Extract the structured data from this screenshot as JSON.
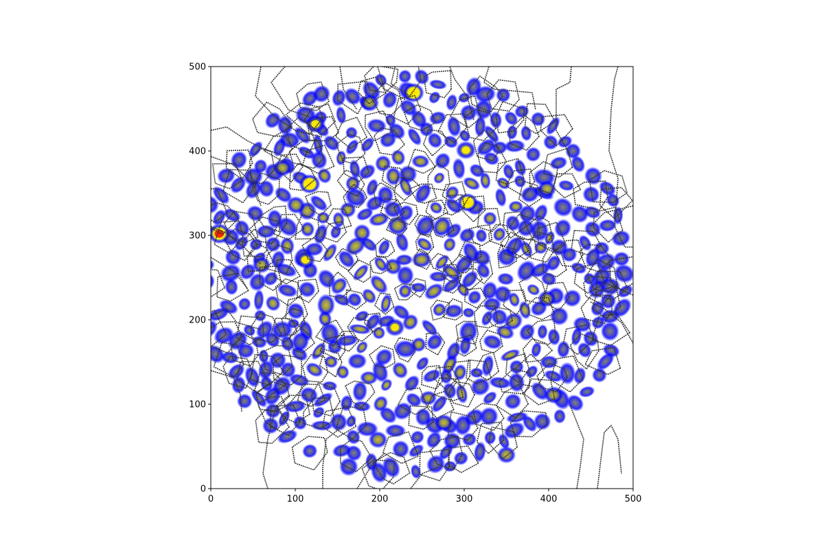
{
  "chart_data": {
    "type": "heatmap",
    "title": "",
    "xlabel": "",
    "ylabel": "",
    "xlim": [
      0,
      500
    ],
    "ylim": [
      0,
      500
    ],
    "grid": false,
    "x_ticks": [
      {
        "value": 0,
        "label": "0"
      },
      {
        "value": 100,
        "label": "100"
      },
      {
        "value": 200,
        "label": "200"
      },
      {
        "value": 300,
        "label": "300"
      },
      {
        "value": 400,
        "label": "400"
      },
      {
        "value": 500,
        "label": "500"
      }
    ],
    "y_ticks": [
      {
        "value": 0,
        "label": "0"
      },
      {
        "value": 100,
        "label": "100"
      },
      {
        "value": 200,
        "label": "200"
      },
      {
        "value": 300,
        "label": "300"
      },
      {
        "value": 400,
        "label": "400"
      },
      {
        "value": 500,
        "label": "500"
      }
    ],
    "colormap": [
      "#ffffff",
      "#0000ff",
      "#8a8a5c",
      "#ffff00",
      "#ff0000"
    ],
    "boundary_color": "#333333",
    "hotspots": [
      {
        "x": 10,
        "y": 302,
        "intensity": 1.0
      },
      {
        "x": 240,
        "y": 469,
        "intensity": 0.9
      },
      {
        "x": 117,
        "y": 361,
        "intensity": 0.9
      },
      {
        "x": 304,
        "y": 339,
        "intensity": 0.8
      },
      {
        "x": 302,
        "y": 401,
        "intensity": 0.75
      },
      {
        "x": 124,
        "y": 432,
        "intensity": 0.75
      },
      {
        "x": 112,
        "y": 271,
        "intensity": 0.7
      },
      {
        "x": 188,
        "y": 457,
        "intensity": 0.65
      },
      {
        "x": 218,
        "y": 191,
        "intensity": 0.7
      },
      {
        "x": 406,
        "y": 111,
        "intensity": 0.65
      },
      {
        "x": 198,
        "y": 58,
        "intensity": 0.6
      },
      {
        "x": 350,
        "y": 40,
        "intensity": 0.6
      },
      {
        "x": 276,
        "y": 78,
        "intensity": 0.6
      },
      {
        "x": 398,
        "y": 355,
        "intensity": 0.6
      },
      {
        "x": 398,
        "y": 225,
        "intensity": 0.55
      },
      {
        "x": 60,
        "y": 265,
        "intensity": 0.55
      },
      {
        "x": 85,
        "y": 380,
        "intensity": 0.6
      }
    ]
  }
}
